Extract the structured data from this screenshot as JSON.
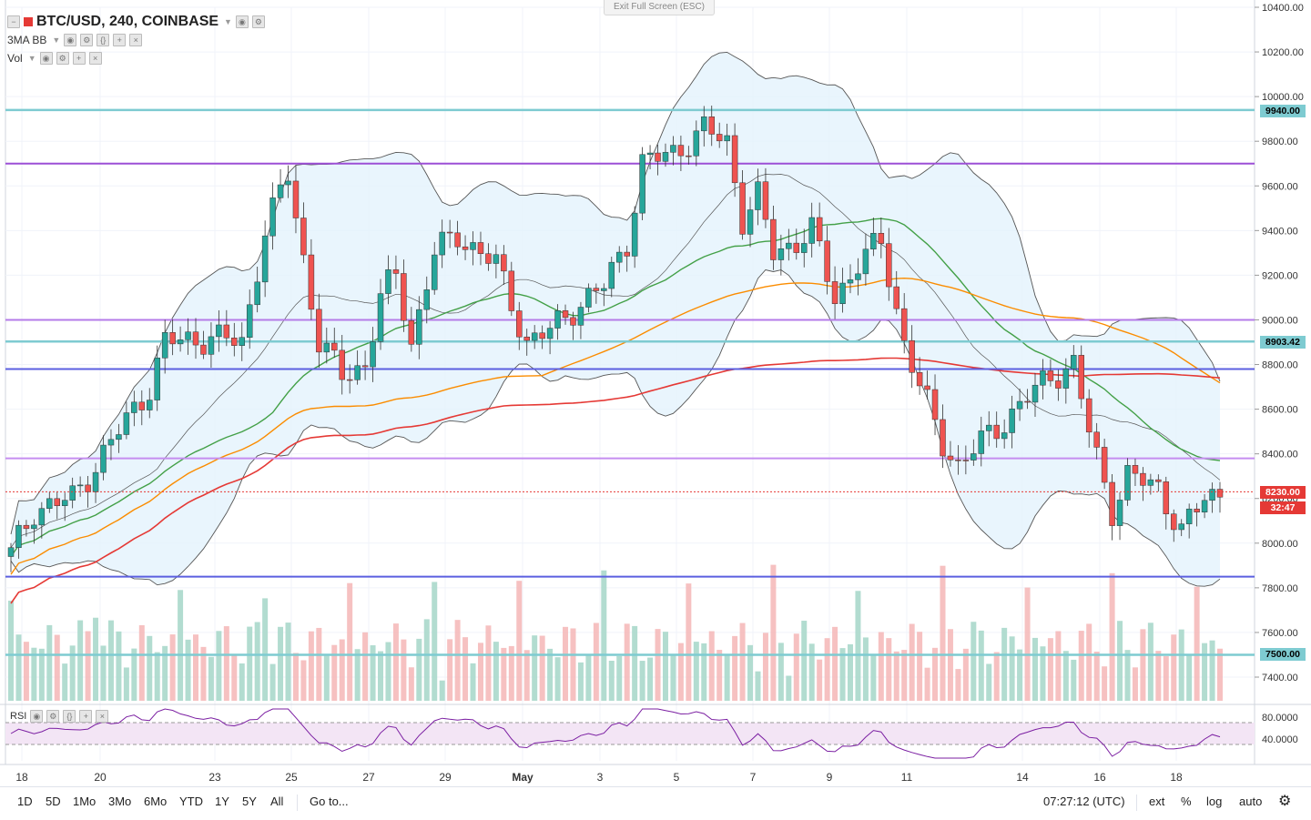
{
  "header": {
    "symbol": "BTC/USD, 240, COINBASE",
    "indicator1": "3MA BB",
    "indicator2": "Vol",
    "exit_fullscreen": "Exit Full Screen (ESC)"
  },
  "price_axis": {
    "ticks": [
      "10400.00",
      "10200.00",
      "10000.00",
      "9800.00",
      "9600.00",
      "9400.00",
      "9200.00",
      "9000.00",
      "8800.00",
      "8600.00",
      "8400.00",
      "8200.00",
      "8000.00",
      "7800.00",
      "7600.00",
      "7400.00"
    ],
    "labels": {
      "level_high": "9940.00",
      "level_mid": "8903.42",
      "current": "8230.00",
      "countdown": "32:47",
      "level_low": "7500.00"
    },
    "colors": {
      "teal": "#7ecbd1",
      "current": "#e53935",
      "countdown": "#e53935"
    }
  },
  "rsi": {
    "label": "RSI",
    "ticks": [
      "80.0000",
      "40.0000"
    ]
  },
  "time_axis": {
    "ticks": [
      "18",
      "20",
      "23",
      "25",
      "27",
      "29",
      "May",
      "3",
      "5",
      "7",
      "9",
      "11",
      "14",
      "16",
      "18"
    ]
  },
  "bottom_bar": {
    "ranges": [
      "1D",
      "5D",
      "1Mo",
      "3Mo",
      "6Mo",
      "YTD",
      "1Y",
      "5Y",
      "All"
    ],
    "goto": "Go to...",
    "time": "07:27:12 (UTC)",
    "ext": "ext",
    "percent": "%",
    "log": "log",
    "auto": "auto"
  },
  "chart_data": {
    "type": "candlestick",
    "title": "BTC/USD, 240, COINBASE",
    "ylim": [
      7300,
      10450
    ],
    "rsi_range": [
      0,
      100
    ],
    "bars": 158,
    "close_anchors": [
      [
        0,
        7950
      ],
      [
        3,
        8150
      ],
      [
        8,
        8200
      ],
      [
        14,
        8500
      ],
      [
        18,
        8700
      ],
      [
        20,
        8900
      ],
      [
        26,
        8920
      ],
      [
        30,
        8900
      ],
      [
        33,
        9400
      ],
      [
        36,
        9650
      ],
      [
        40,
        8900
      ],
      [
        43,
        8750
      ],
      [
        46,
        8800
      ],
      [
        48,
        9100
      ],
      [
        50,
        9200
      ],
      [
        52,
        8900
      ],
      [
        55,
        9300
      ],
      [
        58,
        9380
      ],
      [
        61,
        9300
      ],
      [
        63,
        9250
      ],
      [
        67,
        8900
      ],
      [
        70,
        8950
      ],
      [
        73,
        9050
      ],
      [
        77,
        9150
      ],
      [
        80,
        9350
      ],
      [
        82,
        9700
      ],
      [
        86,
        9750
      ],
      [
        90,
        9850
      ],
      [
        93,
        9800
      ],
      [
        95,
        9450
      ],
      [
        97,
        9550
      ],
      [
        99,
        9300
      ],
      [
        102,
        9350
      ],
      [
        104,
        9400
      ],
      [
        107,
        9100
      ],
      [
        110,
        9250
      ],
      [
        113,
        9350
      ],
      [
        116,
        8900
      ],
      [
        118,
        8700
      ],
      [
        121,
        8450
      ],
      [
        123,
        8350
      ],
      [
        126,
        8450
      ],
      [
        129,
        8550
      ],
      [
        132,
        8650
      ],
      [
        135,
        8750
      ],
      [
        138,
        8800
      ],
      [
        140,
        8500
      ],
      [
        143,
        8150
      ],
      [
        145,
        8300
      ],
      [
        149,
        8250
      ],
      [
        152,
        8050
      ],
      [
        155,
        8200
      ],
      [
        157,
        8230
      ]
    ],
    "horizontal_levels": [
      {
        "price": 9940,
        "color": "#7ecbd1"
      },
      {
        "price": 8903,
        "color": "#7ecbd1"
      },
      {
        "price": 7500,
        "color": "#7ecbd1"
      },
      {
        "price": 9700,
        "color": "#9c4fd6"
      },
      {
        "price": 9000,
        "color": "#b57be8"
      },
      {
        "price": 8380,
        "color": "#c58df0"
      },
      {
        "price": 8780,
        "color": "#5b5fe0"
      },
      {
        "price": 7850,
        "color": "#5b5fe0"
      }
    ],
    "colors": {
      "up": "#26a69a",
      "down": "#ef5350",
      "ma_short": "#43a047",
      "ma_mid": "#fb8c00",
      "ma_long": "#e53935",
      "bands": "#555555",
      "band_fill": "#e3f2fd",
      "rsi_line": "#7b1fa2",
      "rsi_fill": "#f3e5f5"
    }
  }
}
